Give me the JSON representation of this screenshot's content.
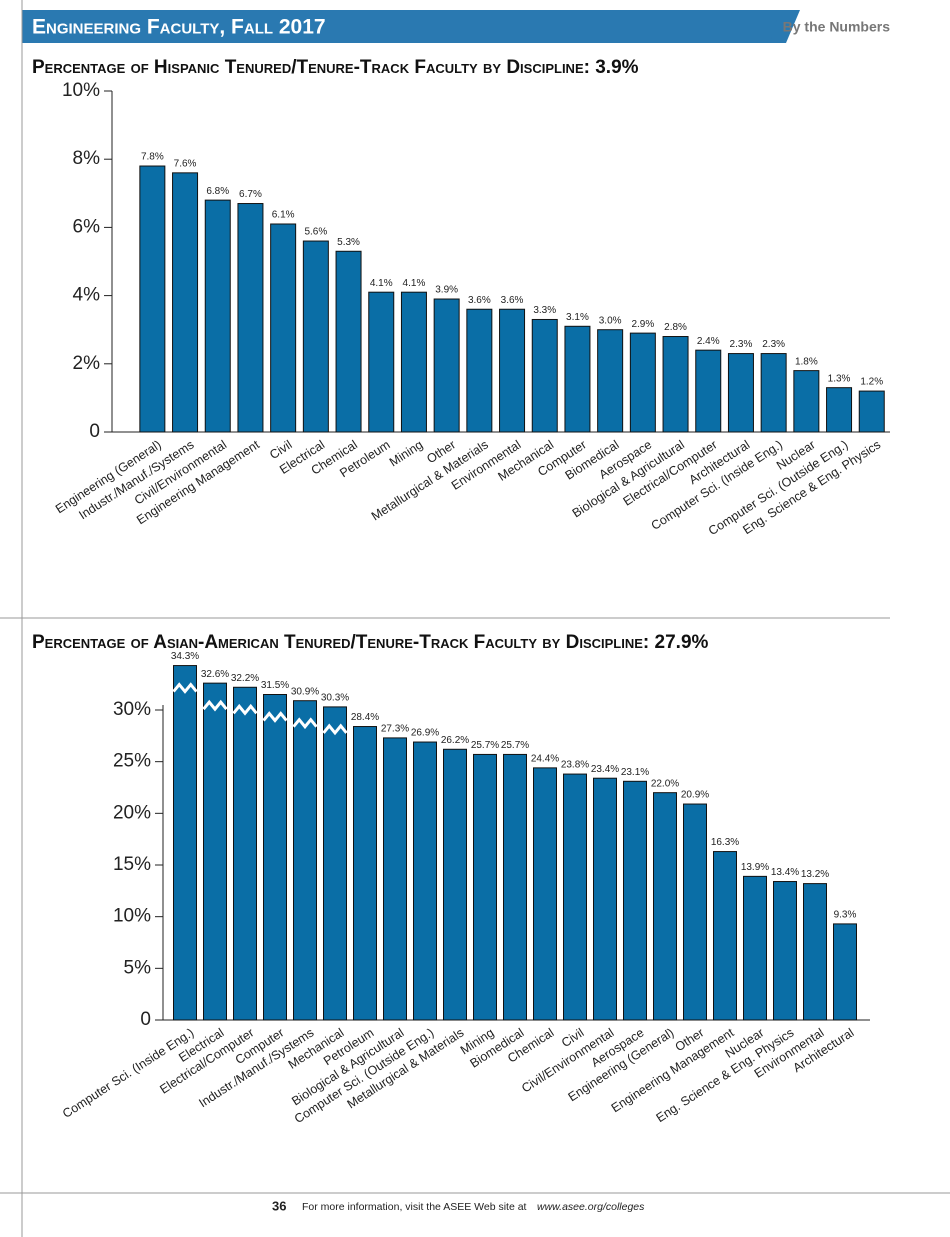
{
  "header": {
    "title": "Engineering Faculty, Fall 2017",
    "section": "By the Numbers"
  },
  "footer": {
    "page": "36",
    "text": "For more information, visit the ASEE Web site at",
    "link": "www.asee.org/colleges"
  },
  "chart_data": [
    {
      "type": "bar",
      "title": "Percentage of Hispanic Tenured/Tenure-Track Faculty by Discipline: 3.9%",
      "color": "#0a6ea6",
      "categories": [
        "Engineering (General)",
        "Industr./Manuf./Systems",
        "Civil/Environmental",
        "Engineering Management",
        "Civil",
        "Electrical",
        "Chemical",
        "Petroleum",
        "Mining",
        "Other",
        "Metallurgical & Materials",
        "Environmental",
        "Mechanical",
        "Computer",
        "Biomedical",
        "Aerospace",
        "Biological & Agricultural",
        "Electrical/Computer",
        "Architectural",
        "Computer Sci. (Inside Eng.)",
        "Nuclear",
        "Computer Sci. (Outside Eng.)",
        "Eng. Science & Eng. Physics"
      ],
      "values": [
        7.8,
        7.6,
        6.8,
        6.7,
        6.1,
        5.6,
        5.3,
        4.1,
        4.1,
        3.9,
        3.6,
        3.6,
        3.3,
        3.1,
        3.0,
        2.9,
        2.8,
        2.4,
        2.3,
        2.3,
        1.8,
        1.3,
        1.2
      ],
      "value_labels": [
        "7.8%",
        "7.6%",
        "6.8%",
        "6.7%",
        "6.1%",
        "5.6%",
        "5.3%",
        "4.1%",
        "4.1%",
        "3.9%",
        "3.6%",
        "3.6%",
        "3.3%",
        "3.1%",
        "3.0%",
        "2.9%",
        "2.8%",
        "2.4%",
        "2.3%",
        "2.3%",
        "1.8%",
        "1.3%",
        "1.2%"
      ],
      "ylim": [
        0,
        10
      ],
      "yticks": [
        0,
        {
          "value": 2,
          "label": "2%"
        },
        {
          "value": 4,
          "label": "4%"
        },
        {
          "value": 6,
          "label": "6%"
        },
        {
          "value": 8,
          "label": "8%"
        },
        {
          "value": 10,
          "label": "10%"
        }
      ]
    },
    {
      "type": "bar",
      "title": "Percentage of Asian-American Tenured/Tenure-Track Faculty by Discipline: 27.9%",
      "color": "#0a6ea6",
      "categories": [
        "Computer Sci. (Inside Eng.)",
        "Electrical",
        "Electrical/Computer",
        "Computer",
        "Industr./Manuf./Systems",
        "Mechanical",
        "Petroleum",
        "Biological & Agricultural",
        "Computer Sci. (Outside Eng.)",
        "Metallurgical & Materials",
        "Mining",
        "Biomedical",
        "Chemical",
        "Civil",
        "Civil/Environmental",
        "Aerospace",
        "Engineering (General)",
        "Other",
        "Engineering Management",
        "Nuclear",
        "Eng. Science & Eng. Physics",
        "Environmental",
        "Architectural"
      ],
      "values": [
        34.3,
        32.6,
        32.2,
        31.5,
        30.9,
        30.3,
        28.4,
        27.3,
        26.9,
        26.2,
        25.7,
        25.7,
        24.4,
        23.8,
        23.4,
        23.1,
        22.0,
        20.9,
        16.3,
        13.9,
        13.4,
        13.2,
        9.3
      ],
      "value_labels": [
        "34.3%",
        "32.6%",
        "32.2%",
        "31.5%",
        "30.9%",
        "30.3%",
        "28.4%",
        "27.3%",
        "26.9%",
        "26.2%",
        "25.7%",
        "25.7%",
        "24.4%",
        "23.8%",
        "23.4%",
        "23.1%",
        "22.0%",
        "20.9%",
        "16.3%",
        "13.9%",
        "13.4%",
        "13.2%",
        "9.3%"
      ],
      "ylim": [
        0,
        30
      ],
      "yticks": [
        0,
        {
          "value": 5,
          "label": "5%"
        },
        {
          "value": 10,
          "label": "10%"
        },
        {
          "value": 15,
          "label": "15%"
        },
        {
          "value": 20,
          "label": "20%"
        },
        {
          "value": 25,
          "label": "25%"
        },
        {
          "value": 30,
          "label": "30%"
        }
      ]
    }
  ]
}
